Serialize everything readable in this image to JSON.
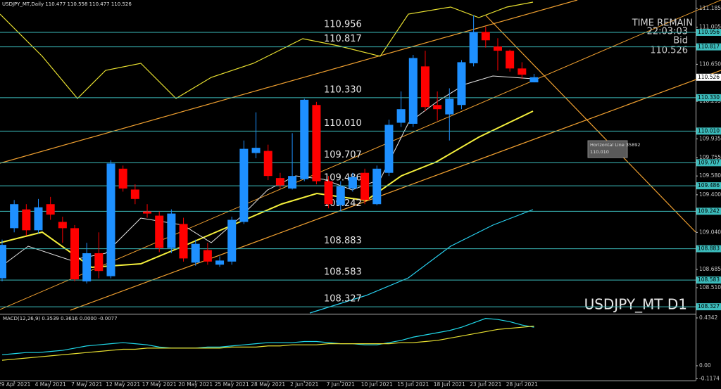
{
  "chart_data": [
    {
      "type": "candlestick",
      "title": "USDJPY_MT,Daily 110.477 110.558 110.477 110.526",
      "symbol_label": "USDJPY_MT D1",
      "categories": [
        null,
        "29 Apr 2021",
        null,
        null,
        "4 May 2021",
        null,
        null,
        "7 May 2021",
        null,
        null,
        "12 May 2021",
        null,
        null,
        "17 May 2021",
        null,
        null,
        "20 May 2021",
        null,
        null,
        "25 May 2021",
        null,
        null,
        "28 May 2021",
        null,
        null,
        "2 Jun 2021",
        null,
        null,
        "7 Jun 2021",
        null,
        null,
        "10 Jun 2021",
        null,
        null,
        "15 Jun 2021",
        null,
        null,
        "18 Jun 2021",
        null,
        null,
        "23 Jun 2021",
        null,
        null,
        "28 Jun 2021",
        null
      ],
      "open": [
        108.6,
        109.08,
        109.26,
        109.06,
        109.31,
        109.14,
        109.08,
        108.57,
        108.84,
        108.62,
        109.65,
        109.45,
        109.24,
        109.2,
        108.89,
        109.12,
        108.75,
        108.87,
        108.73,
        108.76,
        109.14,
        109.8,
        109.82,
        109.56,
        109.46,
        109.55,
        110.26,
        109.53,
        109.3,
        109.46,
        109.61,
        109.31,
        109.61,
        110.09,
        110.08,
        110.63,
        110.26,
        110.17,
        110.26,
        110.66,
        110.96,
        110.82,
        110.78,
        110.61,
        110.477
      ],
      "high": [
        108.97,
        109.35,
        109.31,
        109.36,
        109.38,
        109.19,
        109.11,
        108.94,
        109.04,
        109.73,
        109.68,
        109.5,
        109.31,
        109.24,
        109.26,
        109.18,
        108.97,
        108.94,
        108.81,
        109.19,
        109.92,
        110.19,
        109.88,
        109.61,
        109.99,
        110.32,
        110.29,
        109.58,
        109.53,
        109.61,
        109.65,
        109.68,
        110.12,
        110.39,
        110.74,
        110.78,
        110.39,
        110.42,
        110.69,
        111.12,
        111.01,
        110.9,
        110.79,
        110.67,
        110.558
      ],
      "low": [
        108.57,
        109.04,
        109.01,
        109.03,
        109.16,
        108.94,
        108.57,
        108.55,
        108.6,
        108.6,
        109.43,
        109.31,
        109.18,
        108.85,
        108.84,
        108.76,
        108.72,
        108.73,
        108.71,
        108.73,
        109.12,
        109.75,
        109.54,
        109.46,
        109.45,
        109.53,
        109.5,
        109.27,
        109.24,
        109.43,
        109.31,
        109.3,
        109.58,
        110.05,
        110.05,
        110.2,
        110.11,
        109.92,
        110.22,
        110.63,
        110.81,
        110.59,
        110.58,
        110.51,
        110.477
      ],
      "close": [
        108.92,
        109.31,
        109.06,
        109.28,
        109.21,
        109.08,
        108.59,
        108.84,
        108.67,
        109.7,
        109.46,
        109.36,
        109.22,
        108.89,
        109.22,
        108.79,
        108.93,
        108.76,
        108.77,
        109.16,
        109.84,
        109.85,
        109.58,
        109.49,
        109.58,
        110.31,
        109.53,
        109.31,
        109.48,
        109.57,
        109.35,
        109.65,
        110.07,
        110.22,
        110.71,
        110.24,
        110.22,
        110.32,
        110.67,
        110.96,
        110.88,
        110.78,
        110.61,
        110.55,
        110.526
      ],
      "up_color": "#1e90ff",
      "down_color": "#ff0000",
      "ylim": [
        108.267,
        111.266
      ],
      "yticks": [
        111.185,
        111.005,
        {
          "value": 110.65,
          "label": "110.650"
        },
        110.295,
        109.935,
        109.755,
        {
          "value": 109.58,
          "label": "109.580"
        },
        {
          "value": 109.4,
          "label": "109.400"
        },
        {
          "value": 109.04,
          "label": "109.040"
        },
        108.685,
        {
          "value": 108.51,
          "label": "108.510"
        }
      ],
      "levels": [
        110.956,
        110.817,
        {
          "value": 110.33,
          "label": "110.330"
        },
        {
          "value": 110.01,
          "label": "110.010"
        },
        109.707,
        109.486,
        109.242,
        108.883,
        108.583,
        108.327
      ],
      "level_color": "#3cbcbc",
      "current_price": 110.526,
      "time_remain_label": "TIME REMAIN",
      "time_remain": "22:03:03",
      "bid_label": "Bid",
      "bid": 110.526,
      "tooltip": [
        "Horizontal Line 35892",
        "110.010"
      ]
    },
    {
      "type": "line",
      "title": "MACD(12,26,9) 0.3539 0.3616 0.0000 -0.0077",
      "ylim": [
        -0.128,
        0.466
      ],
      "yticks": [
        0.4342,
        {
          "value": 0,
          "label": "0.00"
        },
        -0.1174
      ],
      "series": [
        {
          "color": "#20d8e8",
          "values": [
            0.1,
            0.11,
            0.12,
            0.12,
            0.13,
            0.14,
            0.16,
            0.18,
            0.19,
            0.2,
            0.21,
            0.2,
            0.19,
            0.17,
            0.16,
            0.16,
            0.16,
            0.17,
            0.17,
            0.18,
            0.19,
            0.2,
            0.21,
            0.21,
            0.21,
            0.22,
            0.22,
            0.21,
            0.2,
            0.2,
            0.19,
            0.19,
            0.21,
            0.23,
            0.26,
            0.28,
            0.3,
            0.32,
            0.35,
            0.39,
            0.43,
            0.42,
            0.4,
            0.37,
            0.35
          ]
        },
        {
          "color": "#e8e030",
          "values": [
            0.05,
            0.06,
            0.07,
            0.08,
            0.09,
            0.1,
            0.11,
            0.12,
            0.13,
            0.14,
            0.15,
            0.15,
            0.16,
            0.16,
            0.16,
            0.16,
            0.16,
            0.16,
            0.16,
            0.17,
            0.17,
            0.17,
            0.18,
            0.18,
            0.19,
            0.19,
            0.19,
            0.2,
            0.2,
            0.2,
            0.2,
            0.2,
            0.2,
            0.21,
            0.21,
            0.22,
            0.23,
            0.25,
            0.27,
            0.29,
            0.31,
            0.33,
            0.34,
            0.35,
            0.36
          ]
        }
      ]
    }
  ]
}
